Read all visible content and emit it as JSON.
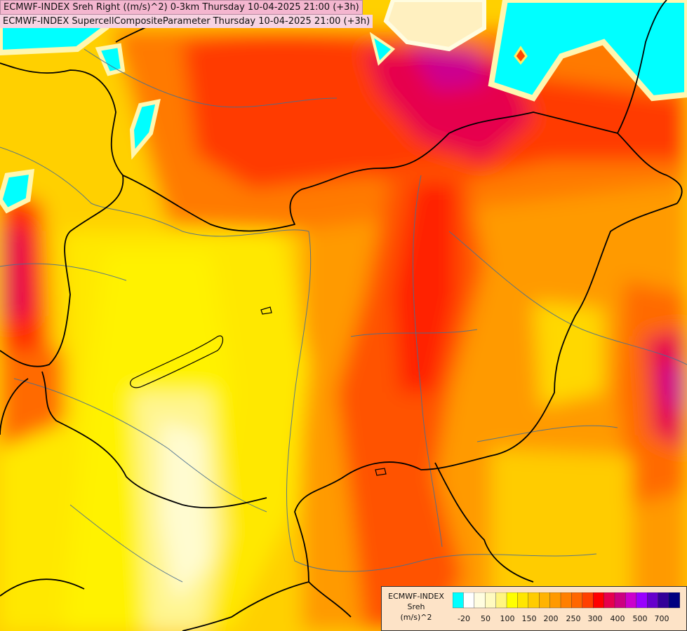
{
  "titles": {
    "line1": "ECMWF-INDEX Sreh Right ((m/s)^2) 0-3km Thursday 10-04-2025 21:00 (+3h)",
    "line2": "ECMWF-INDEX SupercellCompositeParameter Thursday 10-04-2025 21:00 (+3h)"
  },
  "legend": {
    "line1": "ECMWF-INDEX",
    "line2": "Sreh",
    "line3": "(m/s)^2",
    "colors": [
      "#00ffff",
      "#ffffff",
      "#fffde0",
      "#fffac0",
      "#fff580",
      "#ffff00",
      "#ffe600",
      "#ffcc00",
      "#ffb300",
      "#ff9900",
      "#ff7f00",
      "#ff6600",
      "#ff4000",
      "#ff0000",
      "#e6004d",
      "#cc0080",
      "#cc00cc",
      "#9900ff",
      "#6600cc",
      "#330099",
      "#000080"
    ],
    "ticks": [
      "-20",
      "50",
      "100",
      "150",
      "200",
      "250",
      "300",
      "400",
      "500",
      "700"
    ]
  },
  "map": {
    "base_color": "#ffe100",
    "border_color": "#000000",
    "river_color": "#4a6f90"
  }
}
